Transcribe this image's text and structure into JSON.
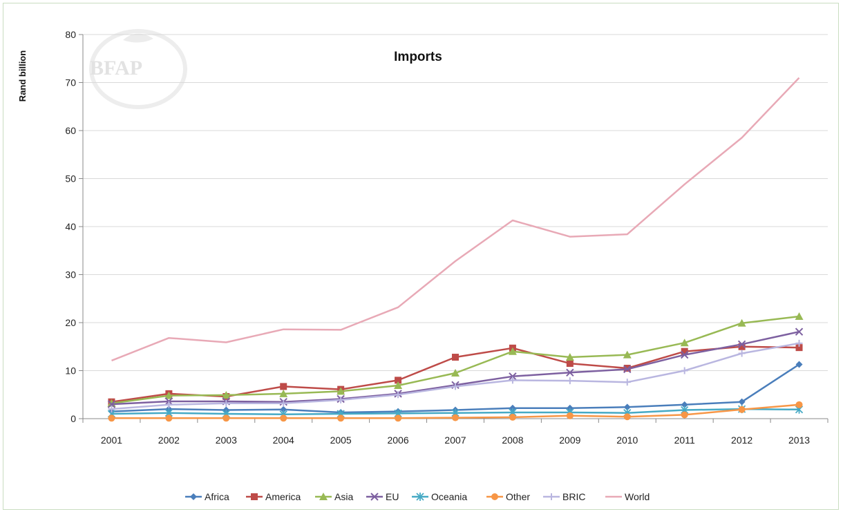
{
  "watermark": {
    "text": "BFAP"
  },
  "chart_data": {
    "type": "line",
    "title": "Imports",
    "ylabel": "Rand billion",
    "xlabel": "",
    "ylim": [
      0,
      80
    ],
    "yticks": [
      0,
      10,
      20,
      30,
      40,
      50,
      60,
      70,
      80
    ],
    "grid": "horizontal",
    "legend_position": "bottom",
    "categories": [
      "2001",
      "2002",
      "2003",
      "2004",
      "2005",
      "2006",
      "2007",
      "2008",
      "2009",
      "2010",
      "2011",
      "2012",
      "2013"
    ],
    "series": [
      {
        "name": "Africa",
        "color": "#4a7ebb",
        "marker": "diamond",
        "values": [
          1.5,
          2.0,
          1.8,
          1.9,
          1.3,
          1.5,
          1.8,
          2.2,
          2.2,
          2.4,
          2.9,
          3.5,
          11.3
        ]
      },
      {
        "name": "America",
        "color": "#be4b48",
        "marker": "square",
        "values": [
          3.5,
          5.2,
          4.6,
          6.7,
          6.1,
          8.0,
          12.8,
          14.7,
          11.5,
          10.5,
          14.0,
          15.0,
          14.8
        ]
      },
      {
        "name": "Asia",
        "color": "#98b954",
        "marker": "triangle",
        "values": [
          3.2,
          4.8,
          4.9,
          5.2,
          5.7,
          6.9,
          9.5,
          14.0,
          12.8,
          13.3,
          15.8,
          19.9,
          21.3
        ]
      },
      {
        "name": "EU",
        "color": "#7d60a0",
        "marker": "x",
        "values": [
          3.0,
          3.6,
          3.6,
          3.5,
          4.1,
          5.2,
          7.0,
          8.8,
          9.6,
          10.3,
          13.3,
          15.5,
          18.1
        ]
      },
      {
        "name": "Oceania",
        "color": "#46aac5",
        "marker": "star",
        "values": [
          1.0,
          1.2,
          1.0,
          0.9,
          1.0,
          1.1,
          1.2,
          1.3,
          1.3,
          1.2,
          1.8,
          2.0,
          1.9
        ]
      },
      {
        "name": "Other",
        "color": "#f79646",
        "marker": "circle",
        "values": [
          0.1,
          0.1,
          0.1,
          0.1,
          0.1,
          0.1,
          0.2,
          0.3,
          0.6,
          0.4,
          0.8,
          1.9,
          2.9
        ]
      },
      {
        "name": "BRIC",
        "color": "#b9b6e0",
        "marker": "plus",
        "values": [
          2.0,
          2.9,
          3.2,
          3.2,
          3.9,
          5.0,
          6.7,
          8.0,
          7.9,
          7.6,
          10.0,
          13.6,
          15.7
        ]
      },
      {
        "name": "World",
        "color": "#e8a9b6",
        "marker": "none",
        "values": [
          12.1,
          16.8,
          15.9,
          18.6,
          18.5,
          23.2,
          32.8,
          41.3,
          37.9,
          38.4,
          48.8,
          58.5,
          71.0
        ]
      }
    ]
  }
}
